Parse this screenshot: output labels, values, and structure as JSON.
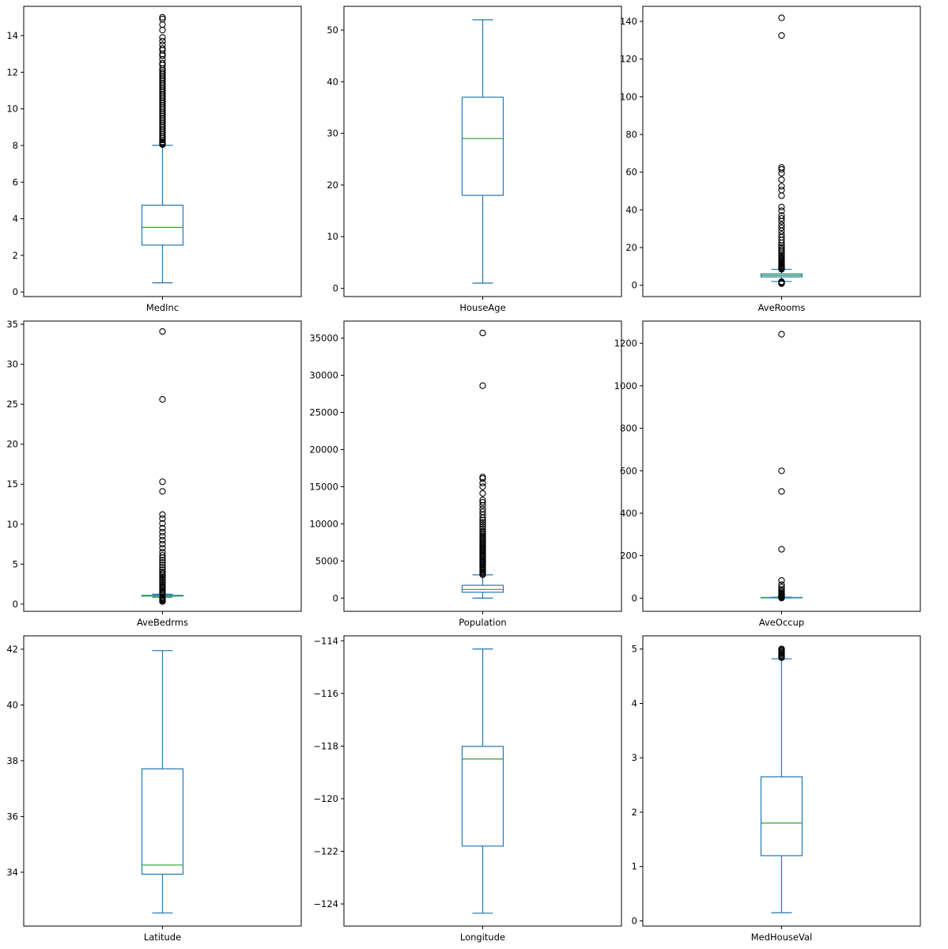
{
  "colors": {
    "box": "#1f77b4",
    "median": "#2ca02c",
    "flier": "#000000",
    "frame": "#000000"
  },
  "chart_data": [
    {
      "type": "box",
      "category": "MedInc",
      "ylim": [
        -0.25,
        15.6
      ],
      "yticks": [
        0,
        2,
        4,
        6,
        8,
        10,
        12,
        14
      ],
      "tick_labels": [
        "0",
        "2",
        "4",
        "6",
        "8",
        "10",
        "12",
        "14"
      ],
      "whisker_low": 0.5,
      "q1": 2.56,
      "median": 3.53,
      "q3": 4.74,
      "whisker_high": 8.01,
      "outliers": [
        8.05,
        8.1,
        8.15,
        8.2,
        8.3,
        8.4,
        8.5,
        8.6,
        8.7,
        8.8,
        8.9,
        9.0,
        9.1,
        9.2,
        9.3,
        9.4,
        9.5,
        9.6,
        9.7,
        9.8,
        9.9,
        10.0,
        10.1,
        10.2,
        10.3,
        10.4,
        10.5,
        10.6,
        10.7,
        10.8,
        10.9,
        11.0,
        11.1,
        11.2,
        11.3,
        11.4,
        11.5,
        11.6,
        11.7,
        11.8,
        11.9,
        12.0,
        12.1,
        12.2,
        12.4,
        12.5,
        12.7,
        12.9,
        13.0,
        13.2,
        13.3,
        13.5,
        13.7,
        13.9,
        14.3,
        14.6,
        14.9,
        15.0
      ]
    },
    {
      "type": "box",
      "category": "HouseAge",
      "ylim": [
        -1.6,
        54.6
      ],
      "yticks": [
        0,
        10,
        20,
        30,
        40,
        50
      ],
      "tick_labels": [
        "0",
        "10",
        "20",
        "30",
        "40",
        "50"
      ],
      "whisker_low": 1,
      "q1": 18,
      "median": 29,
      "q3": 37,
      "whisker_high": 52,
      "outliers": []
    },
    {
      "type": "box",
      "category": "AveRooms",
      "ylim": [
        -6,
        148
      ],
      "yticks": [
        0,
        20,
        40,
        60,
        80,
        100,
        120,
        140
      ],
      "tick_labels": [
        "0",
        "20",
        "40",
        "60",
        "80",
        "100",
        "120",
        "140"
      ],
      "whisker_low": 2.0,
      "q1": 4.44,
      "median": 5.23,
      "q3": 6.05,
      "whisker_high": 8.45,
      "outliers": [
        0.85,
        1.0,
        1.3,
        1.6,
        1.9,
        8.5,
        8.9,
        9.3,
        9.7,
        10.1,
        10.6,
        11.1,
        11.6,
        12.2,
        12.8,
        13.4,
        14.0,
        14.7,
        15.5,
        16.3,
        17.2,
        18.1,
        19.0,
        20.1,
        21.1,
        22.5,
        24.0,
        25.5,
        27.0,
        28.8,
        30.5,
        32.0,
        34.0,
        35.5,
        37.0,
        39.5,
        41.5,
        47.5,
        50.5,
        52.5,
        56.0,
        59.5,
        61.5,
        62.5,
        132.5,
        141.9
      ]
    },
    {
      "type": "box",
      "category": "AveBedrms",
      "ylim": [
        -0.9,
        35.4
      ],
      "yticks": [
        0,
        5,
        10,
        15,
        20,
        25,
        30,
        35
      ],
      "tick_labels": [
        "0",
        "5",
        "10",
        "15",
        "20",
        "25",
        "30",
        "35"
      ],
      "whisker_low": 0.87,
      "q1": 1.01,
      "median": 1.05,
      "q3": 1.1,
      "whisker_high": 1.24,
      "outliers": [
        0.33,
        0.45,
        0.55,
        0.65,
        0.75,
        0.85,
        1.3,
        1.45,
        1.6,
        1.75,
        1.9,
        2.05,
        2.2,
        2.4,
        2.6,
        2.8,
        3.0,
        3.2,
        3.4,
        3.6,
        3.8,
        4.0,
        4.3,
        4.6,
        4.9,
        5.2,
        5.5,
        5.8,
        6.1,
        6.5,
        7.0,
        7.5,
        8.0,
        8.5,
        9.0,
        9.5,
        10.1,
        10.7,
        11.2,
        14.1,
        15.3,
        25.6,
        34.1
      ]
    },
    {
      "type": "box",
      "category": "Population",
      "ylim": [
        -1780,
        37300
      ],
      "yticks": [
        0,
        5000,
        10000,
        15000,
        20000,
        25000,
        30000,
        35000
      ],
      "tick_labels": [
        "0",
        "5000",
        "10000",
        "15000",
        "20000",
        "25000",
        "30000",
        "35000"
      ],
      "whisker_low": 3,
      "q1": 787,
      "median": 1166,
      "q3": 1725,
      "whisker_high": 3132,
      "outliers": [
        3150,
        3300,
        3450,
        3600,
        3750,
        3900,
        4050,
        4200,
        4350,
        4500,
        4650,
        4800,
        4950,
        5100,
        5250,
        5400,
        5550,
        5700,
        5850,
        6000,
        6150,
        6300,
        6450,
        6600,
        6750,
        6900,
        7050,
        7200,
        7350,
        7500,
        7650,
        7800,
        8000,
        8200,
        8400,
        8600,
        8800,
        9000,
        9300,
        9600,
        9900,
        10200,
        10500,
        10800,
        11200,
        11600,
        12000,
        12500,
        12900,
        13200,
        14100,
        15000,
        15500,
        16100,
        16300,
        28600,
        35700
      ]
    },
    {
      "type": "box",
      "category": "AveOccup",
      "ylim": [
        -62,
        1305
      ],
      "yticks": [
        0,
        200,
        400,
        600,
        800,
        1000,
        1200
      ],
      "tick_labels": [
        "0",
        "200",
        "400",
        "600",
        "800",
        "1000",
        "1200"
      ],
      "whisker_low": 1.2,
      "q1": 2.43,
      "median": 2.82,
      "q3": 3.28,
      "whisker_high": 4.56,
      "outliers": [
        0.7,
        4.8,
        5.5,
        6.5,
        8.0,
        10.0,
        12.0,
        14.5,
        18.0,
        21.0,
        26.0,
        33.0,
        41.0,
        51.5,
        63.0,
        83.2,
        230.2,
        502.5,
        599.7,
        1243.3
      ]
    },
    {
      "type": "box",
      "category": "Latitude",
      "ylim": [
        32.07,
        42.48
      ],
      "yticks": [
        34,
        36,
        38,
        40,
        42
      ],
      "tick_labels": [
        "34",
        "36",
        "38",
        "40",
        "42"
      ],
      "whisker_low": 32.54,
      "q1": 33.93,
      "median": 34.26,
      "q3": 37.71,
      "whisker_high": 41.95,
      "outliers": []
    },
    {
      "type": "box",
      "category": "Longitude",
      "ylim": [
        -124.84,
        -113.81
      ],
      "yticks": [
        -124,
        -122,
        -120,
        -118,
        -116,
        -114
      ],
      "tick_labels": [
        "−124",
        "−122",
        "−120",
        "−118",
        "−116",
        "−114"
      ],
      "whisker_low": -124.35,
      "q1": -121.8,
      "median": -118.49,
      "q3": -118.01,
      "whisker_high": -114.31,
      "outliers": []
    },
    {
      "type": "box",
      "category": "MedHouseVal",
      "ylim": [
        -0.095,
        5.243
      ],
      "yticks": [
        0,
        1,
        2,
        3,
        4,
        5
      ],
      "tick_labels": [
        "0",
        "1",
        "2",
        "3",
        "4",
        "5"
      ],
      "whisker_low": 0.15,
      "q1": 1.2,
      "median": 1.8,
      "q3": 2.65,
      "whisker_high": 4.82,
      "outliers": [
        4.84,
        4.86,
        4.88,
        4.9,
        4.92,
        4.94,
        4.96,
        4.98,
        5.0,
        5.0
      ]
    }
  ]
}
